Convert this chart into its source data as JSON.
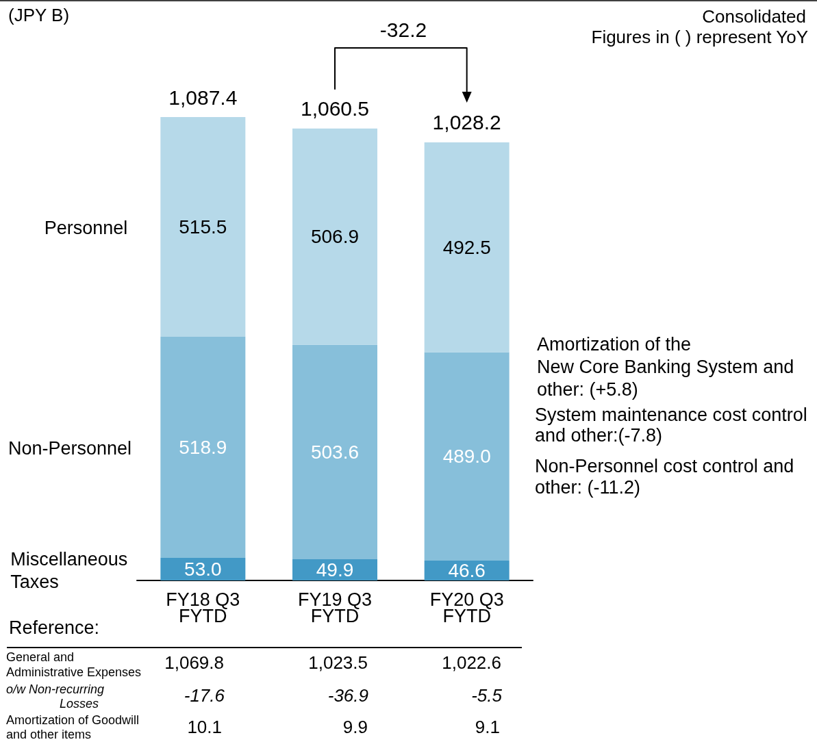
{
  "chart_data": {
    "type": "bar",
    "stacked": true,
    "categories": [
      "FY18 Q3\nFYTD",
      "FY19 Q3\nFYTD",
      "FY20 Q3\nFYTD"
    ],
    "series": [
      {
        "name": "Miscellaneous\nTaxes",
        "color": "#4299c6",
        "values": [
          53.0,
          49.9,
          46.6
        ],
        "value_labels": [
          "53.0",
          "49.9",
          "46.6"
        ]
      },
      {
        "name": "Non-Personnel",
        "color": "#87bfda",
        "values": [
          518.9,
          503.6,
          489.0
        ],
        "value_labels": [
          "518.9",
          "503.6",
          "489.0"
        ]
      },
      {
        "name": "Personnel",
        "color": "#b6d9e9",
        "values": [
          515.5,
          506.9,
          492.5
        ],
        "value_labels": [
          "515.5",
          "506.9",
          "492.5"
        ]
      }
    ],
    "totals": [
      "1,087.4",
      "1,060.5",
      "1,028.2"
    ],
    "annotations": [
      "(JPY B)",
      "Consolidated",
      "Figures in ( ) represent YoY",
      "-32.2",
      "Amortization of the\nNew Core Banking System and\nother: (+5.8)",
      "System maintenance cost control\nand other:(-7.8)",
      "Non-Personnel cost control and\nother: (-11.2)",
      "Reference:",
      "General and\nAdministrative Expenses",
      "1,069.8",
      "1,023.5",
      "1,022.6",
      "o/w Non-recurring\nLosses",
      "-17.6",
      "-36.9",
      "-5.5",
      "Amortization of Goodwill\nand other items",
      "10.1",
      "9.9",
      "9.1"
    ]
  }
}
